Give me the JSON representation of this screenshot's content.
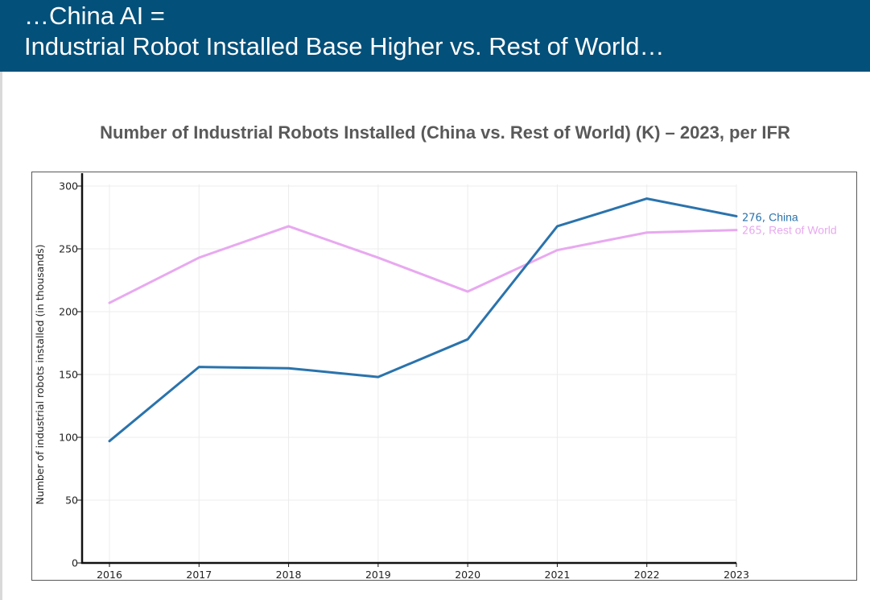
{
  "slide": {
    "title_line1": "…China AI =",
    "title_line2": "Industrial Robot Installed Base Higher vs. Rest of World…"
  },
  "chart_data": {
    "type": "line",
    "title": "Number of Industrial Robots Installed (China vs. Rest of World) (K) – 2023, per IFR",
    "xlabel": "",
    "ylabel": "Number of industrial robots installed (in thousands)",
    "x": [
      "2016",
      "2017",
      "2018",
      "2019",
      "2020",
      "2021",
      "2022",
      "2023"
    ],
    "ylim": [
      0,
      300
    ],
    "yticks": [
      0,
      50,
      100,
      150,
      200,
      250,
      300
    ],
    "grid": true,
    "series": [
      {
        "name": "China",
        "color": "#2a73ac",
        "values": [
          97,
          156,
          155,
          148,
          178,
          268,
          290,
          276
        ],
        "end_label_value": "276,",
        "end_label_name": "China"
      },
      {
        "name": "Rest of World",
        "color": "#e8a9f0",
        "values": [
          207,
          243,
          268,
          243,
          216,
          249,
          263,
          265
        ],
        "end_label_value": "265,",
        "end_label_name": "Rest of World"
      }
    ]
  }
}
